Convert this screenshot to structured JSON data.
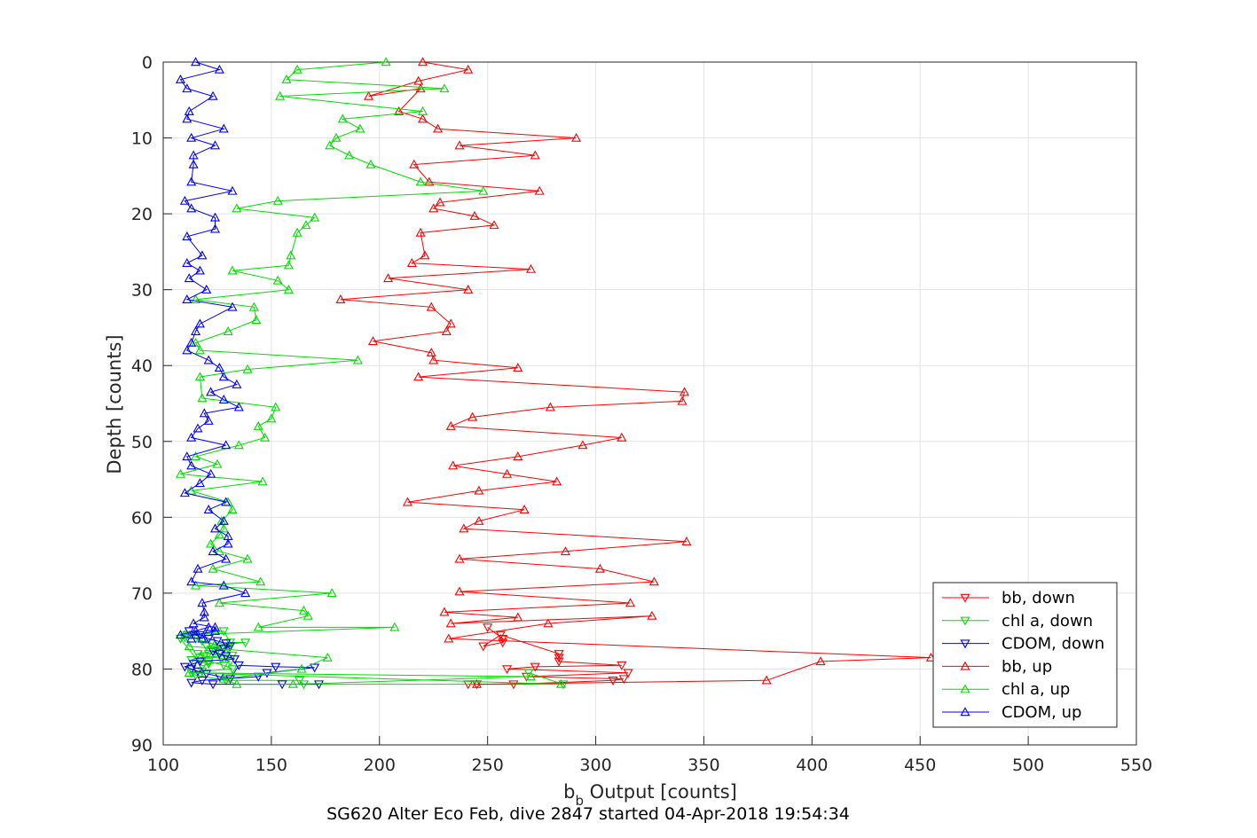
{
  "chart_data": {
    "type": "line",
    "title": "",
    "xlabel_main": "b",
    "xlabel_sub": "b",
    "xlabel_rest": " Output [counts]",
    "ylabel": "Depth [counts]",
    "caption": "SG620 Alter Eco Feb, dive 2847 started 04-Apr-2018 19:54:34",
    "xlim": [
      100,
      550
    ],
    "ylim": [
      0,
      90
    ],
    "y_reversed": true,
    "grid": true,
    "legend_position": "bottom-right",
    "x_ticks": [
      100,
      150,
      200,
      250,
      300,
      350,
      400,
      450,
      500,
      550
    ],
    "y_ticks": [
      0,
      10,
      20,
      30,
      40,
      50,
      60,
      70,
      80,
      90
    ],
    "series": [
      {
        "name": "bb, down",
        "color": "#ff0000",
        "marker": "triangle-down",
        "x": [
          250,
          257,
          257,
          248,
          256,
          283,
          283,
          283,
          312,
          272,
          259,
          315,
          268,
          313,
          308,
          262,
          241,
          245
        ],
        "y": [
          74.5,
          76,
          76.5,
          77,
          75.5,
          78,
          78.5,
          79,
          79.5,
          79.7,
          80,
          80.5,
          81,
          81.3,
          81.5,
          82,
          82,
          82
        ]
      },
      {
        "name": "chl a, down",
        "color": "#00dd00",
        "marker": "triangle-down",
        "x": [
          111,
          115,
          118,
          122,
          126,
          130,
          124,
          116,
          119,
          127,
          131,
          121,
          118,
          108,
          110,
          114,
          128,
          131,
          138,
          120,
          125,
          121,
          132,
          117,
          113,
          121,
          128,
          132,
          118,
          113,
          115,
          129,
          163,
          165,
          285,
          269
        ],
        "y": [
          75.5,
          76,
          76.3,
          76.6,
          77,
          77.3,
          77.6,
          78,
          78.3,
          78.6,
          79,
          79.3,
          79.6,
          76,
          75.8,
          75.5,
          75,
          76.5,
          76.5,
          77,
          77.5,
          78,
          78.2,
          78.5,
          78.8,
          79,
          79.5,
          80,
          80.3,
          80.5,
          80.8,
          81.5,
          81.5,
          82,
          82,
          80.5
        ]
      },
      {
        "name": "CDOM, down",
        "color": "#0000ff",
        "marker": "triangle-down",
        "x": [
          112,
          117,
          121,
          125,
          129,
          131,
          128,
          123,
          126,
          129,
          133,
          117,
          114,
          110,
          113,
          116,
          120,
          126,
          131,
          135,
          152,
          170,
          148,
          144,
          118,
          113,
          123,
          155,
          172
        ],
        "y": [
          75,
          75.5,
          76,
          76.3,
          76.6,
          77,
          77.3,
          77.7,
          78,
          78.3,
          78.7,
          79,
          79.3,
          79.7,
          80,
          80.3,
          80.6,
          81,
          81.3,
          79.5,
          79.7,
          79.8,
          80.5,
          81,
          81.5,
          81.8,
          82,
          82,
          82
        ]
      },
      {
        "name": "bb, up",
        "color": "#ff0000",
        "marker": "triangle-up",
        "x": [
          220,
          241,
          218,
          195,
          219,
          209,
          220,
          227,
          291,
          237,
          272,
          216,
          223,
          274,
          228,
          225,
          244,
          253,
          219,
          221,
          215,
          270,
          204,
          241,
          182,
          224,
          233,
          231,
          197,
          224,
          225,
          264,
          218,
          341,
          340,
          279,
          243,
          233,
          312,
          294,
          264,
          234,
          259,
          282,
          246,
          213,
          267,
          246,
          239,
          342,
          286,
          237,
          302,
          327,
          237,
          316,
          230,
          264,
          233,
          326,
          278,
          232,
          455,
          404,
          379,
          245
        ],
        "y": [
          0,
          1,
          2.5,
          4.5,
          3.5,
          6.5,
          7.5,
          8.8,
          10,
          11,
          12.3,
          13.5,
          15.8,
          17,
          18.5,
          19.3,
          20.3,
          21.5,
          22.5,
          25.5,
          26.5,
          27.3,
          28.5,
          30,
          31.3,
          32.3,
          34.5,
          35.5,
          36.8,
          38.3,
          39.3,
          40.3,
          41.5,
          43.5,
          44.7,
          45.5,
          46.8,
          48,
          49.5,
          50.5,
          52,
          53.2,
          54.3,
          55.3,
          56.5,
          58,
          59,
          60.5,
          61.5,
          63.2,
          64.5,
          65.5,
          66.8,
          68.5,
          69.8,
          71.3,
          72.5,
          73.2,
          74,
          73,
          74,
          76,
          78.5,
          79,
          81.5,
          82
        ]
      },
      {
        "name": "chl a, up",
        "color": "#00dd00",
        "marker": "triangle-up",
        "x": [
          203,
          162,
          157,
          230,
          154,
          220,
          183,
          191,
          180,
          177,
          186,
          196,
          219,
          248,
          153,
          134,
          170,
          166,
          162,
          159,
          158,
          132,
          153,
          158,
          115,
          142,
          143,
          130,
          115,
          117,
          190,
          139,
          117,
          118,
          152,
          150,
          144,
          147,
          135,
          115,
          125,
          108,
          146,
          113,
          130,
          132,
          127,
          128,
          126,
          122,
          126,
          139,
          123,
          145,
          115,
          178,
          126,
          165,
          167,
          144,
          207,
          110,
          112,
          176,
          164,
          128,
          134,
          160,
          270,
          112,
          284
        ],
        "y": [
          0,
          1,
          2.3,
          3.5,
          4.5,
          6.5,
          7.5,
          8.8,
          10,
          11,
          12.3,
          13.5,
          15.8,
          17,
          18.3,
          19.3,
          20.5,
          21.5,
          22.5,
          25.5,
          26.8,
          27.5,
          28.8,
          30,
          31.3,
          32.3,
          34,
          35.5,
          37,
          38,
          39.3,
          40.5,
          41.5,
          44.3,
          45.5,
          47,
          48,
          49.5,
          50.5,
          52,
          53,
          54.3,
          55.3,
          56.5,
          58,
          59,
          60.5,
          61.5,
          62.3,
          63.5,
          64.5,
          65.5,
          66.8,
          68.5,
          69,
          70,
          71.3,
          72.3,
          73,
          74.5,
          74.5,
          75.5,
          77,
          78.5,
          80,
          81.3,
          82,
          82,
          81,
          80.5,
          82
        ]
      },
      {
        "name": "CDOM, up",
        "color": "#0000ff",
        "marker": "triangle-up",
        "x": [
          115,
          126,
          108,
          111,
          123,
          112,
          111,
          128,
          113,
          124,
          114,
          114,
          113,
          132,
          110,
          113,
          124,
          124,
          111,
          118,
          111,
          117,
          112,
          120,
          111,
          132,
          117,
          115,
          113,
          111,
          121,
          126,
          128,
          134,
          122,
          128,
          135,
          119,
          121,
          116,
          113,
          129,
          111,
          113,
          122,
          117,
          110,
          129,
          121,
          128,
          124,
          130,
          130,
          123,
          129,
          116,
          113,
          128,
          138,
          118,
          119,
          119,
          114,
          124,
          124,
          115,
          118,
          121,
          108,
          113,
          115
        ],
        "y": [
          0,
          1,
          2.3,
          3.5,
          4.5,
          6.5,
          7.5,
          8.8,
          10,
          11,
          12.3,
          13.5,
          15.8,
          17,
          18.3,
          19.3,
          20.5,
          22,
          23,
          25.5,
          26.5,
          27.5,
          28.5,
          30,
          31.3,
          32.3,
          34.5,
          35.5,
          37,
          38,
          39.3,
          40.3,
          41.5,
          42.5,
          43.5,
          44.5,
          45.5,
          46.3,
          47.3,
          48.3,
          49.5,
          50.5,
          52,
          53.2,
          54.3,
          55.5,
          56.8,
          58,
          59,
          60.5,
          61.5,
          62.5,
          63.5,
          64.5,
          65.5,
          66.8,
          68.5,
          69,
          70,
          71.3,
          72.5,
          73.2,
          74,
          74.5,
          75,
          75.5,
          76,
          74.5,
          75.5,
          76,
          75
        ]
      }
    ]
  }
}
